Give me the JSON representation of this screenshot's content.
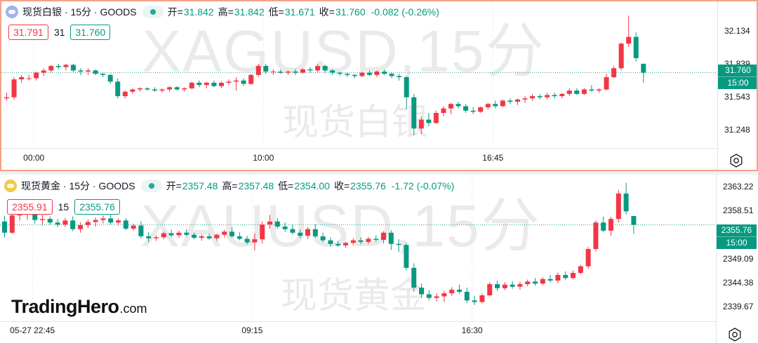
{
  "colors": {
    "up": "#f23645",
    "down": "#089981",
    "axis_text": "#131722",
    "dotted": "#26a69a"
  },
  "brand": {
    "name": "TradingHero",
    "domain": ".com"
  },
  "charts": [
    {
      "id": "silver",
      "watermark_symbol": "XAGUSD,15分",
      "watermark_name": "现货白银",
      "legend": {
        "title": "现货白银 · 15分 · GOODS",
        "open_label": "开=",
        "open": "31.842",
        "high_label": "高=",
        "high": "31.842",
        "low_label": "低=",
        "low": "31.671",
        "close_label": "收=",
        "close": "31.760",
        "change": "-0.082 (-0.26%)"
      },
      "bid": "31.791",
      "spread": "31",
      "ask": "31.760",
      "last_price": "31.760",
      "countdown": "15:00"
    },
    {
      "id": "gold",
      "watermark_symbol": "XAUUSD,15分",
      "watermark_name": "现货黄金",
      "legend": {
        "title": "现货黄金 · 15分 · GOODS",
        "open_label": "开=",
        "open": "2357.48",
        "high_label": "高=",
        "high": "2357.48",
        "low_label": "低=",
        "low": "2354.00",
        "close_label": "收=",
        "close": "2355.76",
        "change": "-1.72 (-0.07%)"
      },
      "bid": "2355.91",
      "spread": "15",
      "ask": "2355.76",
      "last_price": "2355.76",
      "countdown": "15:00"
    }
  ],
  "chart_data": [
    {
      "type": "candlestick",
      "title": "现货白银 · 15分 · GOODS",
      "y_ticks": [
        32.134,
        31.839,
        31.543,
        31.248
      ],
      "ylim": [
        31.13,
        32.31
      ],
      "x_ticks": [
        "00:00",
        "10:00",
        "16:45"
      ],
      "x_tick_bars": [
        4,
        35,
        66
      ],
      "last": 31.76,
      "ohlc": [
        [
          31.53,
          31.58,
          31.51,
          31.54
        ],
        [
          31.54,
          31.72,
          31.52,
          31.7
        ],
        [
          31.7,
          31.74,
          31.67,
          31.72
        ],
        [
          31.71,
          31.74,
          31.69,
          31.71
        ],
        [
          31.71,
          31.77,
          31.69,
          31.76
        ],
        [
          31.76,
          31.8,
          31.73,
          31.78
        ],
        [
          31.78,
          31.83,
          31.76,
          31.82
        ],
        [
          31.82,
          31.84,
          31.79,
          31.81
        ],
        [
          31.81,
          31.84,
          31.78,
          31.83
        ],
        [
          31.83,
          31.84,
          31.76,
          31.78
        ],
        [
          31.78,
          31.8,
          31.74,
          31.77
        ],
        [
          31.77,
          31.8,
          31.74,
          31.78
        ],
        [
          31.78,
          31.79,
          31.74,
          31.75
        ],
        [
          31.75,
          31.76,
          31.72,
          31.74
        ],
        [
          31.74,
          31.75,
          31.66,
          31.68
        ],
        [
          31.68,
          31.71,
          31.53,
          31.55
        ],
        [
          31.55,
          31.6,
          31.53,
          31.59
        ],
        [
          31.59,
          31.62,
          31.57,
          31.61
        ],
        [
          31.61,
          31.63,
          31.59,
          31.62
        ],
        [
          31.62,
          31.63,
          31.6,
          31.61
        ],
        [
          31.61,
          31.63,
          31.59,
          31.6
        ],
        [
          31.6,
          31.62,
          31.58,
          31.61
        ],
        [
          31.61,
          31.64,
          31.59,
          31.63
        ],
        [
          31.63,
          31.64,
          31.6,
          31.61
        ],
        [
          31.61,
          31.63,
          31.59,
          31.62
        ],
        [
          31.62,
          31.68,
          31.61,
          31.67
        ],
        [
          31.67,
          31.69,
          31.63,
          31.65
        ],
        [
          31.65,
          31.68,
          31.62,
          31.67
        ],
        [
          31.67,
          31.69,
          31.63,
          31.64
        ],
        [
          31.64,
          31.68,
          31.62,
          31.67
        ],
        [
          31.67,
          31.7,
          31.65,
          31.68
        ],
        [
          31.68,
          31.72,
          31.6,
          31.69
        ],
        [
          31.69,
          31.71,
          31.64,
          31.66
        ],
        [
          31.66,
          31.75,
          31.65,
          31.74
        ],
        [
          31.74,
          31.84,
          31.72,
          31.82
        ],
        [
          31.82,
          31.84,
          31.75,
          31.77
        ],
        [
          31.77,
          31.79,
          31.74,
          31.77
        ],
        [
          31.77,
          31.79,
          31.75,
          31.76
        ],
        [
          31.76,
          31.78,
          31.74,
          31.77
        ],
        [
          31.77,
          31.79,
          31.74,
          31.76
        ],
        [
          31.76,
          31.8,
          31.75,
          31.79
        ],
        [
          31.79,
          31.81,
          31.76,
          31.78
        ],
        [
          31.78,
          31.84,
          31.76,
          31.82
        ],
        [
          31.82,
          31.83,
          31.76,
          31.78
        ],
        [
          31.78,
          31.79,
          31.74,
          31.76
        ],
        [
          31.76,
          31.77,
          31.73,
          31.75
        ],
        [
          31.75,
          31.76,
          31.72,
          31.74
        ],
        [
          31.74,
          31.75,
          31.71,
          31.73
        ],
        [
          31.73,
          31.77,
          31.72,
          31.76
        ],
        [
          31.76,
          31.78,
          31.73,
          31.74
        ],
        [
          31.74,
          31.78,
          31.72,
          31.77
        ],
        [
          31.77,
          31.79,
          31.74,
          31.75
        ],
        [
          31.75,
          31.76,
          31.71,
          31.73
        ],
        [
          31.73,
          31.75,
          31.69,
          31.72
        ],
        [
          31.72,
          31.73,
          31.43,
          31.54
        ],
        [
          31.54,
          31.57,
          31.2,
          31.26
        ],
        [
          31.26,
          31.37,
          31.21,
          31.34
        ],
        [
          31.34,
          31.4,
          31.28,
          31.31
        ],
        [
          31.31,
          31.42,
          31.3,
          31.4
        ],
        [
          31.4,
          31.46,
          31.37,
          31.44
        ],
        [
          31.44,
          31.49,
          31.39,
          31.48
        ],
        [
          31.48,
          31.5,
          31.44,
          31.46
        ],
        [
          31.46,
          31.48,
          31.4,
          31.42
        ],
        [
          31.42,
          31.45,
          31.39,
          31.41
        ],
        [
          31.41,
          31.46,
          31.4,
          31.45
        ],
        [
          31.45,
          31.49,
          31.43,
          31.48
        ],
        [
          31.48,
          31.51,
          31.44,
          31.46
        ],
        [
          31.46,
          31.52,
          31.45,
          31.51
        ],
        [
          31.51,
          31.53,
          31.48,
          31.5
        ],
        [
          31.5,
          31.53,
          31.47,
          31.52
        ],
        [
          31.52,
          31.55,
          31.49,
          31.53
        ],
        [
          31.53,
          31.57,
          31.51,
          31.55
        ],
        [
          31.55,
          31.57,
          31.52,
          31.54
        ],
        [
          31.54,
          31.58,
          31.52,
          31.56
        ],
        [
          31.56,
          31.58,
          31.53,
          31.55
        ],
        [
          31.55,
          31.58,
          31.53,
          31.57
        ],
        [
          31.57,
          31.62,
          31.55,
          31.6
        ],
        [
          31.6,
          31.62,
          31.56,
          31.57
        ],
        [
          31.57,
          31.62,
          31.56,
          31.61
        ],
        [
          31.61,
          31.65,
          31.59,
          31.6
        ],
        [
          31.6,
          31.62,
          31.58,
          31.61
        ],
        [
          31.61,
          31.75,
          31.6,
          31.72
        ],
        [
          31.72,
          31.82,
          31.71,
          31.8
        ],
        [
          31.8,
          32.03,
          31.78,
          32.02
        ],
        [
          32.02,
          32.27,
          31.99,
          32.08
        ],
        [
          32.08,
          32.12,
          31.86,
          31.89
        ],
        [
          31.84,
          31.84,
          31.67,
          31.76
        ]
      ]
    },
    {
      "type": "candlestick",
      "title": "现货黄金 · 15分 · GOODS",
      "y_ticks": [
        2363.22,
        2358.51,
        2353.8,
        2349.09,
        2344.38,
        2339.67
      ],
      "ylim": [
        2338.6,
        2364.5
      ],
      "x_ticks": [
        "05-27 22:45",
        "09:15",
        "16:30"
      ],
      "x_tick_bars": [
        4,
        33,
        62
      ],
      "last": 2355.76,
      "ohlc": [
        [
          2356.4,
          2357.5,
          2353.3,
          2354.2
        ],
        [
          2354.2,
          2358.0,
          2353.9,
          2357.6
        ],
        [
          2357.6,
          2358.7,
          2356.6,
          2357.9
        ],
        [
          2357.9,
          2359.3,
          2356.7,
          2358.9
        ],
        [
          2358.9,
          2359.5,
          2356.0,
          2356.7
        ],
        [
          2356.7,
          2357.7,
          2355.6,
          2356.9
        ],
        [
          2356.9,
          2357.4,
          2355.8,
          2356.2
        ],
        [
          2356.2,
          2356.9,
          2355.3,
          2355.8
        ],
        [
          2355.8,
          2357.1,
          2355.3,
          2356.6
        ],
        [
          2356.6,
          2357.4,
          2354.5,
          2354.9
        ],
        [
          2354.9,
          2356.2,
          2354.2,
          2355.7
        ],
        [
          2355.7,
          2356.8,
          2355.1,
          2356.3
        ],
        [
          2356.3,
          2357.2,
          2355.4,
          2356.7
        ],
        [
          2356.7,
          2357.6,
          2356.0,
          2357.0
        ],
        [
          2357.0,
          2357.7,
          2355.8,
          2356.2
        ],
        [
          2356.2,
          2357.0,
          2355.6,
          2356.6
        ],
        [
          2356.6,
          2357.1,
          2354.7,
          2355.0
        ],
        [
          2355.0,
          2356.0,
          2354.6,
          2355.6
        ],
        [
          2355.6,
          2356.4,
          2353.1,
          2353.5
        ],
        [
          2353.5,
          2354.3,
          2352.4,
          2353.1
        ],
        [
          2353.1,
          2353.7,
          2352.6,
          2353.3
        ],
        [
          2353.3,
          2354.4,
          2352.9,
          2354.1
        ],
        [
          2354.1,
          2354.8,
          2353.4,
          2353.7
        ],
        [
          2353.7,
          2354.6,
          2353.2,
          2354.2
        ],
        [
          2354.2,
          2354.9,
          2353.5,
          2353.8
        ],
        [
          2353.8,
          2354.2,
          2352.9,
          2353.2
        ],
        [
          2353.2,
          2353.9,
          2352.6,
          2353.5
        ],
        [
          2353.5,
          2354.0,
          2352.8,
          2353.1
        ],
        [
          2353.1,
          2354.0,
          2352.6,
          2353.8
        ],
        [
          2353.8,
          2354.8,
          2353.3,
          2354.4
        ],
        [
          2354.4,
          2355.3,
          2353.2,
          2353.5
        ],
        [
          2353.5,
          2354.3,
          2352.7,
          2353.0
        ],
        [
          2353.0,
          2353.6,
          2351.9,
          2352.3
        ],
        [
          2352.3,
          2354.1,
          2350.7,
          2352.9
        ],
        [
          2352.9,
          2356.4,
          2352.1,
          2355.8
        ],
        [
          2355.8,
          2357.7,
          2355.0,
          2356.4
        ],
        [
          2356.4,
          2357.1,
          2355.0,
          2355.4
        ],
        [
          2355.4,
          2356.2,
          2354.4,
          2354.9
        ],
        [
          2354.9,
          2355.8,
          2353.8,
          2354.2
        ],
        [
          2354.2,
          2354.8,
          2353.1,
          2353.6
        ],
        [
          2353.6,
          2355.3,
          2353.0,
          2354.9
        ],
        [
          2354.9,
          2355.9,
          2353.2,
          2353.5
        ],
        [
          2353.5,
          2354.2,
          2352.3,
          2352.7
        ],
        [
          2352.7,
          2353.3,
          2351.5,
          2352.0
        ],
        [
          2352.0,
          2352.6,
          2351.4,
          2351.7
        ],
        [
          2351.7,
          2352.5,
          2351.2,
          2352.2
        ],
        [
          2352.2,
          2353.1,
          2351.7,
          2352.7
        ],
        [
          2352.7,
          2353.3,
          2351.9,
          2352.4
        ],
        [
          2352.4,
          2353.4,
          2352.0,
          2353.0
        ],
        [
          2353.0,
          2353.7,
          2352.4,
          2352.8
        ],
        [
          2352.8,
          2354.5,
          2352.1,
          2354.2
        ],
        [
          2354.2,
          2354.7,
          2350.8,
          2352.0
        ],
        [
          2352.0,
          2352.9,
          2350.4,
          2351.8
        ],
        [
          2351.8,
          2352.3,
          2346.8,
          2347.3
        ],
        [
          2347.3,
          2348.2,
          2342.6,
          2343.4
        ],
        [
          2343.4,
          2344.2,
          2341.4,
          2342.1
        ],
        [
          2342.1,
          2342.9,
          2340.9,
          2341.4
        ],
        [
          2341.4,
          2342.3,
          2340.7,
          2341.7
        ],
        [
          2341.7,
          2342.8,
          2340.6,
          2342.3
        ],
        [
          2342.3,
          2343.5,
          2341.8,
          2343.0
        ],
        [
          2343.0,
          2344.0,
          2342.2,
          2342.6
        ],
        [
          2342.6,
          2343.4,
          2340.4,
          2340.9
        ],
        [
          2340.9,
          2341.8,
          2340.0,
          2340.6
        ],
        [
          2340.6,
          2342.3,
          2340.3,
          2341.9
        ],
        [
          2341.9,
          2344.5,
          2341.7,
          2344.1
        ],
        [
          2344.1,
          2344.8,
          2342.8,
          2343.3
        ],
        [
          2343.3,
          2344.5,
          2342.9,
          2344.0
        ],
        [
          2344.0,
          2344.7,
          2343.2,
          2343.6
        ],
        [
          2343.6,
          2344.6,
          2343.0,
          2344.1
        ],
        [
          2344.1,
          2345.0,
          2343.7,
          2344.6
        ],
        [
          2344.6,
          2345.3,
          2343.8,
          2344.2
        ],
        [
          2344.2,
          2345.5,
          2343.9,
          2345.1
        ],
        [
          2345.1,
          2345.9,
          2344.4,
          2344.8
        ],
        [
          2344.8,
          2346.4,
          2344.3,
          2345.9
        ],
        [
          2345.9,
          2346.6,
          2344.9,
          2345.3
        ],
        [
          2345.3,
          2346.8,
          2345.0,
          2346.3
        ],
        [
          2346.3,
          2347.9,
          2346.0,
          2347.6
        ],
        [
          2347.6,
          2351.4,
          2347.1,
          2351.0
        ],
        [
          2351.0,
          2356.6,
          2350.6,
          2356.2
        ],
        [
          2356.2,
          2357.4,
          2354.3,
          2354.6
        ],
        [
          2354.6,
          2357.3,
          2353.6,
          2356.9
        ],
        [
          2356.9,
          2362.6,
          2356.2,
          2361.9
        ],
        [
          2361.9,
          2364.0,
          2357.8,
          2358.4
        ],
        [
          2357.48,
          2357.48,
          2354.0,
          2355.76
        ]
      ]
    }
  ]
}
